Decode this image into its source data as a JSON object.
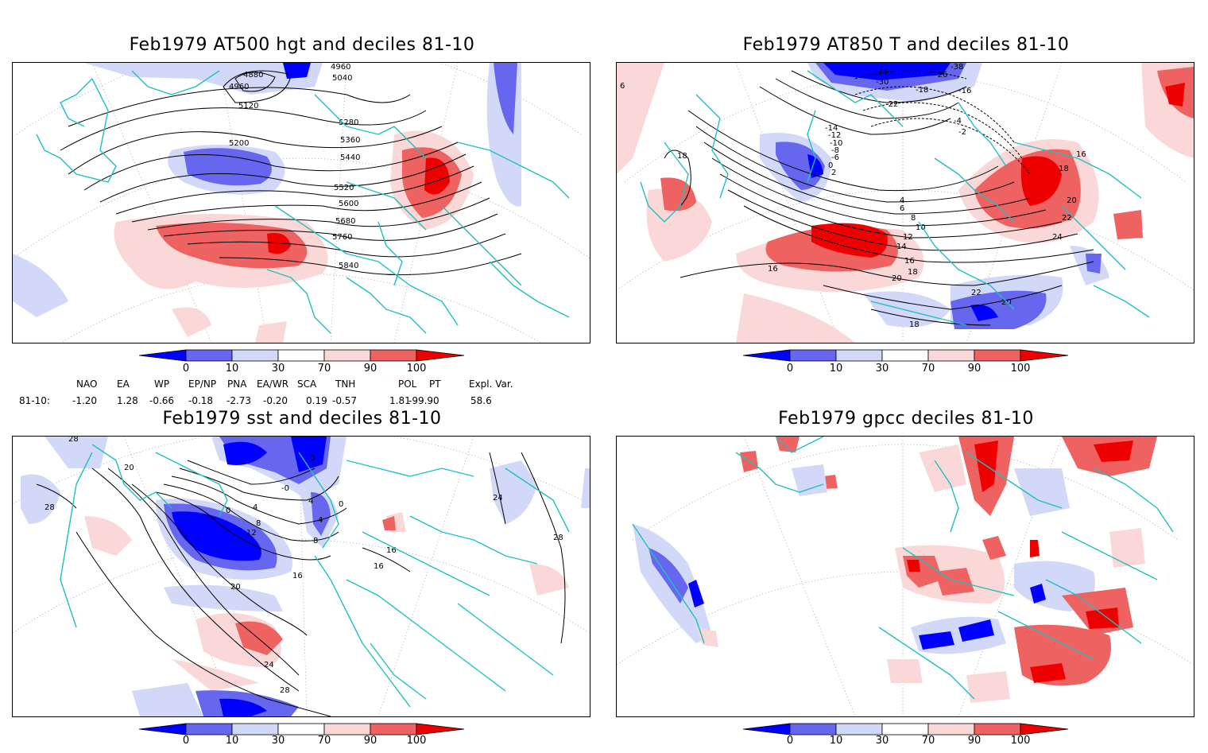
{
  "colors": {
    "coast": "#20c0c0",
    "strong_neg": "#0000ff",
    "mid_neg": "#6666ee",
    "weak_neg": "#d2d8f8",
    "weak_pos": "#fbd8d8",
    "mid_pos": "#ef6262",
    "strong_pos": "#ee0000",
    "contour": "#000000"
  },
  "colorbar_labels": [
    "0",
    "10",
    "30",
    "70",
    "90",
    "100"
  ],
  "panels": [
    {
      "title": "Feb1979 AT500 hgt and deciles 81-10",
      "contour_labels": [
        "4880",
        "4960",
        "4960",
        "5040",
        "5120",
        "5200",
        "5280",
        "5360",
        "5440",
        "5520",
        "5600",
        "5680",
        "5760",
        "5840"
      ]
    },
    {
      "title": "Feb1979 AT850 T and deciles 81-10",
      "contour_labels": [
        "-38",
        "-34",
        "-30",
        "-26",
        "-22",
        "-18",
        "-16",
        "-14",
        "-12",
        "-10",
        "-8",
        "-6",
        "-4",
        "-2",
        "0",
        "2",
        "4",
        "6",
        "8",
        "10",
        "12",
        "14",
        "16",
        "18",
        "20",
        "22",
        "24",
        "16",
        "18",
        "20",
        "22",
        "20",
        "18",
        "16",
        "18",
        "6"
      ]
    },
    {
      "title": "Feb1979 sst and deciles 81-10",
      "contour_labels": [
        "28",
        "28",
        "20",
        "0",
        "0",
        "-0",
        "4",
        "8",
        "12",
        "16",
        "20",
        "24",
        "28",
        "24",
        "28",
        "16",
        "16",
        "4",
        "0",
        "4",
        "8"
      ]
    },
    {
      "title": "Feb1979 gpcc deciles 81-10",
      "contour_labels": []
    }
  ],
  "indices": {
    "headers": [
      "NAO",
      "EA",
      "WP",
      "EP/NP",
      "PNA",
      "EA/WR",
      "SCA",
      "TNH",
      "POL",
      "PT",
      "Expl. Var."
    ],
    "row_label": "81-10:",
    "values": [
      "-1.20",
      "1.28",
      "-0.66",
      "-0.18",
      "-2.73",
      "-0.20",
      "0.19",
      "-0.57",
      "1.81",
      "-99.90",
      "58.6"
    ]
  }
}
